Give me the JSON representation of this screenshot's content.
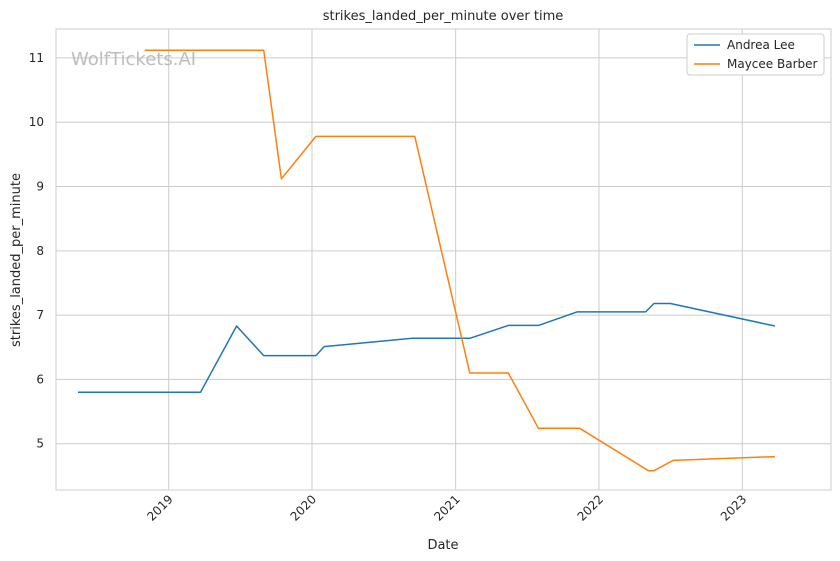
{
  "chart_data": {
    "type": "line",
    "title": "strikes_landed_per_minute over time",
    "xlabel": "Date",
    "ylabel": "strikes_landed_per_minute",
    "watermark": "WolfTickets.AI",
    "x_axis": "date",
    "xlim": [
      "2018-03-20",
      "2023-08-15"
    ],
    "ylim": [
      4.28,
      11.45
    ],
    "x_ticks": [
      "2019-01-01",
      "2020-01-01",
      "2021-01-01",
      "2022-01-01",
      "2023-01-01"
    ],
    "x_tick_labels": [
      "2019",
      "2020",
      "2021",
      "2022",
      "2023"
    ],
    "y_ticks": [
      5,
      6,
      7,
      8,
      9,
      10,
      11
    ],
    "y_tick_labels": [
      "5",
      "6",
      "7",
      "8",
      "9",
      "10",
      "11"
    ],
    "grid": true,
    "legend_position": "top-right",
    "series": [
      {
        "name": "Andrea Lee",
        "color": "#1f77b4",
        "points": [
          [
            "2018-05-15",
            5.8
          ],
          [
            "2019-03-23",
            5.8
          ],
          [
            "2019-06-23",
            6.83
          ],
          [
            "2019-08-31",
            6.37
          ],
          [
            "2020-01-11",
            6.37
          ],
          [
            "2020-02-01",
            6.51
          ],
          [
            "2020-09-12",
            6.64
          ],
          [
            "2021-02-06",
            6.64
          ],
          [
            "2021-05-15",
            6.84
          ],
          [
            "2021-07-31",
            6.84
          ],
          [
            "2021-11-06",
            7.05
          ],
          [
            "2022-04-30",
            7.05
          ],
          [
            "2022-05-21",
            7.18
          ],
          [
            "2022-07-02",
            7.18
          ],
          [
            "2023-03-25",
            6.83
          ]
        ]
      },
      {
        "name": "Maycee Barber",
        "color": "#ff7f0e",
        "points": [
          [
            "2018-11-01",
            11.12
          ],
          [
            "2019-08-31",
            11.12
          ],
          [
            "2019-10-15",
            9.12
          ],
          [
            "2020-01-11",
            9.78
          ],
          [
            "2020-09-19",
            9.78
          ],
          [
            "2021-02-06",
            6.1
          ],
          [
            "2021-05-15",
            6.1
          ],
          [
            "2021-07-31",
            5.24
          ],
          [
            "2021-11-13",
            5.24
          ],
          [
            "2022-05-07",
            4.58
          ],
          [
            "2022-05-21",
            4.58
          ],
          [
            "2022-07-09",
            4.74
          ],
          [
            "2023-03-25",
            4.8
          ]
        ]
      }
    ]
  }
}
